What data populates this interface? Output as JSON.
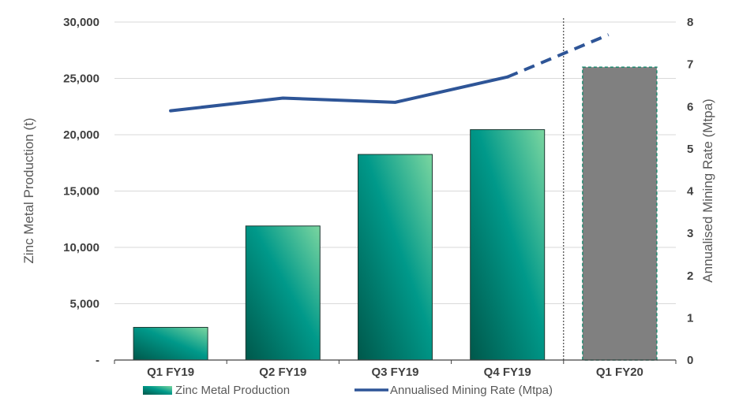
{
  "chart_data": {
    "type": "bar",
    "categories": [
      "Q1 FY19",
      "Q2 FY19",
      "Q3 FY19",
      "Q4 FY19",
      "Q1 FY20"
    ],
    "series": [
      {
        "name": "Zinc Metal Production",
        "type": "bar",
        "axis": "left",
        "values": [
          2900,
          11900,
          18250,
          20450,
          26000
        ],
        "projected_from_index": 4
      },
      {
        "name": "Annualised Mining Rate (Mtpa)",
        "type": "line",
        "axis": "right",
        "values": [
          5.9,
          6.2,
          6.1,
          6.7,
          7.7
        ],
        "dashed_from_index": 3,
        "dashed_end_category_offset": -0.1
      }
    ],
    "ylabel": "Zinc Metal Production (t)",
    "ylabel_right": "Annualised Mining Rate (Mtpa)",
    "ylim": [
      0,
      30000
    ],
    "ylim_right": [
      0,
      8
    ],
    "yticks": [
      0,
      5000,
      10000,
      15000,
      20000,
      25000,
      30000
    ],
    "yticks_labels": [
      "-",
      "5,000",
      "10,000",
      "15,000",
      "20,000",
      "25,000",
      "30,000"
    ],
    "yticks_right": [
      0,
      1,
      2,
      3,
      4,
      5,
      6,
      7,
      8
    ],
    "grid": true,
    "legend": "bottom",
    "separator_before_index": 4,
    "colors": {
      "bar_dark": "#00584b",
      "bar_mid": "#00998a",
      "bar_light": "#7bd6a0",
      "projected_bar": "#808080",
      "projected_border": "#1f8a70",
      "line": "#2e5597",
      "grid": "#d9d9d9",
      "axis": "#404040"
    }
  }
}
